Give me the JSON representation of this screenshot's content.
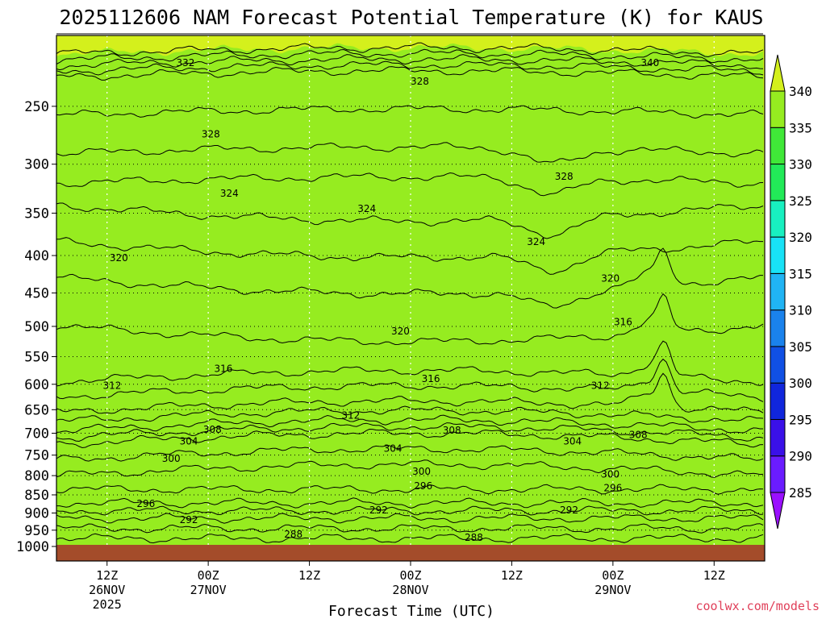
{
  "chart_data": {
    "type": "contour",
    "title": "2025112606 NAM Forecast Potential Temperature (K) for KAUS",
    "xlabel": "Forecast Time (UTC)",
    "ylabel": "",
    "credit": "coolwx.com/models",
    "y_axis": {
      "unit": "hPa",
      "scale": "log",
      "inverted": true,
      "range": [
        200,
        1000
      ],
      "ticks": [
        250,
        300,
        350,
        400,
        450,
        500,
        550,
        600,
        650,
        700,
        750,
        800,
        850,
        900,
        950,
        1000
      ]
    },
    "x_axis": {
      "range_hours": [
        0,
        84
      ],
      "ticks": [
        {
          "hour": 6,
          "line1": "12Z",
          "line2": "26NOV",
          "line3": "2025"
        },
        {
          "hour": 18,
          "line1": "00Z",
          "line2": "27NOV",
          "line3": ""
        },
        {
          "hour": 30,
          "line1": "12Z",
          "line2": "",
          "line3": ""
        },
        {
          "hour": 42,
          "line1": "00Z",
          "line2": "28NOV",
          "line3": ""
        },
        {
          "hour": 54,
          "line1": "12Z",
          "line2": "",
          "line3": ""
        },
        {
          "hour": 66,
          "line1": "00Z",
          "line2": "29NOV",
          "line3": ""
        },
        {
          "hour": 78,
          "line1": "12Z",
          "line2": "",
          "line3": ""
        }
      ]
    },
    "colorbar": {
      "levels": [
        285,
        290,
        295,
        300,
        305,
        310,
        315,
        320,
        325,
        330,
        335,
        340
      ],
      "colors": [
        "#9a10ff",
        "#6a1cff",
        "#3a10e8",
        "#1026dc",
        "#1050e4",
        "#1a82ec",
        "#20b4f4",
        "#18e2f6",
        "#18f0c0",
        "#22ea58",
        "#40e838",
        "#96ec20",
        "#d4f01c"
      ]
    },
    "isentropes": [
      {
        "theta": 288,
        "p": 975
      },
      {
        "theta": 292,
        "p": 915
      },
      {
        "theta": 296,
        "p": 872
      },
      {
        "theta": 300,
        "p": 800
      },
      {
        "theta": 304,
        "p": 725
      },
      {
        "theta": 308,
        "p": 695
      },
      {
        "theta": 312,
        "p": 655
      },
      {
        "theta": 316,
        "p": 595
      },
      {
        "theta": 320,
        "p": 440
      },
      {
        "theta": 324,
        "p": 350
      },
      {
        "theta": 328,
        "p": 290
      },
      {
        "theta": 332,
        "p": 228
      },
      {
        "theta": 340,
        "p": 212
      }
    ],
    "contour_labels": [
      {
        "text": "332",
        "hour": 15.3,
        "p": 218
      },
      {
        "text": "340",
        "hour": 70.4,
        "p": 218
      },
      {
        "text": "328",
        "hour": 43.1,
        "p": 231
      },
      {
        "text": "328",
        "hour": 18.3,
        "p": 273
      },
      {
        "text": "328",
        "hour": 60.2,
        "p": 312
      },
      {
        "text": "324",
        "hour": 20.5,
        "p": 329
      },
      {
        "text": "324",
        "hour": 36.8,
        "p": 345
      },
      {
        "text": "324",
        "hour": 56.9,
        "p": 383
      },
      {
        "text": "320",
        "hour": 7.4,
        "p": 403
      },
      {
        "text": "320",
        "hour": 65.7,
        "p": 430
      },
      {
        "text": "316",
        "hour": 67.2,
        "p": 493
      },
      {
        "text": "320",
        "hour": 40.8,
        "p": 508
      },
      {
        "text": "316",
        "hour": 19.8,
        "p": 571
      },
      {
        "text": "316",
        "hour": 44.4,
        "p": 590
      },
      {
        "text": "312",
        "hour": 6.6,
        "p": 603
      },
      {
        "text": "312",
        "hour": 64.5,
        "p": 603
      },
      {
        "text": "312",
        "hour": 34.9,
        "p": 662
      },
      {
        "text": "308",
        "hour": 18.5,
        "p": 692
      },
      {
        "text": "308",
        "hour": 46.9,
        "p": 694
      },
      {
        "text": "308",
        "hour": 69.0,
        "p": 704
      },
      {
        "text": "304",
        "hour": 15.7,
        "p": 718
      },
      {
        "text": "304",
        "hour": 39.9,
        "p": 735
      },
      {
        "text": "304",
        "hour": 61.2,
        "p": 718
      },
      {
        "text": "300",
        "hour": 13.6,
        "p": 758
      },
      {
        "text": "300",
        "hour": 43.3,
        "p": 790
      },
      {
        "text": "300",
        "hour": 65.7,
        "p": 797
      },
      {
        "text": "296",
        "hour": 43.5,
        "p": 827
      },
      {
        "text": "296",
        "hour": 66.0,
        "p": 832
      },
      {
        "text": "296",
        "hour": 10.6,
        "p": 874
      },
      {
        "text": "292",
        "hour": 38.2,
        "p": 892
      },
      {
        "text": "292",
        "hour": 60.8,
        "p": 892
      },
      {
        "text": "292",
        "hour": 15.7,
        "p": 920
      },
      {
        "text": "288",
        "hour": 28.1,
        "p": 963
      },
      {
        "text": "288",
        "hour": 49.5,
        "p": 972
      }
    ]
  }
}
